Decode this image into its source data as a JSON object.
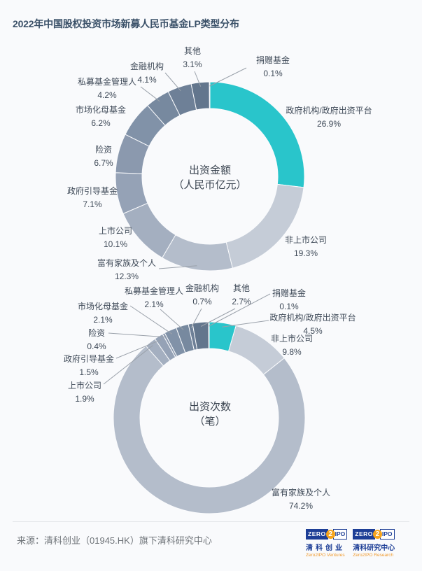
{
  "page": {
    "title": "2022年中国股权投资市场新募人民币基金LP类型分布",
    "source_text": "来源：清科创业（01945.HK）旗下清科研究中心"
  },
  "colors": {
    "title": "#3a5068",
    "accent_teal": "#29c5cb",
    "navy": "#1d3e96",
    "orange": "#f6a41c",
    "leader_line": "#9aa1aa",
    "palette": [
      "#29c5cb",
      "#c5ccd7",
      "#b4bdcb",
      "#a4afc0",
      "#95a2b6",
      "#8b99ae",
      "#8192a8",
      "#77899f",
      "#6e8097",
      "#63768d",
      "#596c84"
    ]
  },
  "chart_data": [
    {
      "type": "pie",
      "subtype": "donut",
      "title": "出资金额（人民币亿元）",
      "center_title": "出资金额",
      "center_sub": "（人民币亿元）",
      "unit": "%",
      "legend_position": "none",
      "categories": [
        "政府机构/政府出资平台",
        "非上市公司",
        "富有家族及个人",
        "上市公司",
        "政府引导基金",
        "险资",
        "市场化母基金",
        "私募基金管理人",
        "金融机构",
        "其他",
        "捐赠基金"
      ],
      "values": [
        26.9,
        19.3,
        12.3,
        10.1,
        7.1,
        6.7,
        6.2,
        4.2,
        4.1,
        3.1,
        0.1
      ]
    },
    {
      "type": "pie",
      "subtype": "donut",
      "title": "出资次数（笔）",
      "center_title": "出资次数",
      "center_sub": "（笔）",
      "unit": "%",
      "legend_position": "none",
      "categories": [
        "政府机构/政府出资平台",
        "非上市公司",
        "富有家族及个人",
        "上市公司",
        "政府引导基金",
        "险资",
        "市场化母基金",
        "私募基金管理人",
        "金融机构",
        "其他",
        "捐赠基金"
      ],
      "values": [
        4.5,
        9.8,
        74.2,
        1.9,
        1.5,
        0.4,
        2.1,
        2.1,
        0.7,
        2.7,
        0.1
      ]
    }
  ],
  "logos": [
    {
      "zero": "ZERO",
      "two": "2",
      "ipo": "IPO",
      "cn": "清科创业",
      "en": "Zero2IPO Ventures"
    },
    {
      "zero": "ZERO",
      "two": "2",
      "ipo": "IPO",
      "cn": "清科研究中心",
      "en": "Zero2IPO Research"
    }
  ]
}
